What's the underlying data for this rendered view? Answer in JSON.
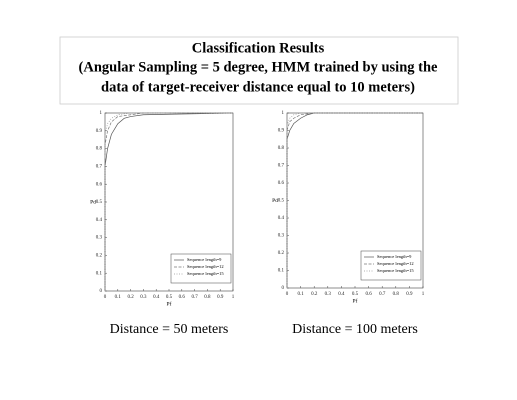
{
  "title": [
    "Classification Results",
    "(Angular Sampling = 5 degree, HMM trained by using the",
    "data of target-receiver distance equal to 10 meters)"
  ],
  "chart_data": [
    {
      "type": "line",
      "title": "Distance = 50 meters",
      "xlabel": "Pf",
      "ylabel": "Pd",
      "xlim": [
        0,
        1
      ],
      "ylim": [
        0,
        1
      ],
      "xticks": [
        0,
        0.1,
        0.2,
        0.3,
        0.4,
        0.5,
        0.6,
        0.7,
        0.8,
        0.9,
        1
      ],
      "yticks": [
        0,
        0.1,
        0.2,
        0.3,
        0.4,
        0.5,
        0.6,
        0.7,
        0.8,
        0.9,
        1
      ],
      "legend": "lower right",
      "series": [
        {
          "name": "Sequence length=9",
          "color": "#555555",
          "dash": "none",
          "x": [
            0,
            0,
            0.02,
            0.05,
            0.1,
            0.15,
            0.2,
            0.3,
            1
          ],
          "values": [
            0,
            0.7,
            0.8,
            0.88,
            0.94,
            0.97,
            0.98,
            0.99,
            1
          ]
        },
        {
          "name": "Sequence length=12",
          "color": "#777777",
          "dash": "3 1.5",
          "x": [
            0,
            0,
            0.02,
            0.05,
            0.1,
            0.2,
            0.3,
            1
          ],
          "values": [
            0,
            0.82,
            0.9,
            0.95,
            0.98,
            0.99,
            1,
            1
          ]
        },
        {
          "name": "Sequence length=15",
          "color": "#999999",
          "dash": "1 1.5",
          "x": [
            0,
            0,
            0.02,
            0.05,
            0.1,
            0.2,
            1
          ],
          "values": [
            0,
            0.88,
            0.94,
            0.97,
            0.99,
            1,
            1
          ]
        }
      ]
    },
    {
      "type": "line",
      "title": "Distance = 100 meters",
      "xlabel": "Pf",
      "ylabel": "Pd",
      "xlim": [
        0,
        1
      ],
      "ylim": [
        0,
        1
      ],
      "xticks": [
        0,
        0.1,
        0.2,
        0.3,
        0.4,
        0.5,
        0.6,
        0.7,
        0.8,
        0.9,
        1
      ],
      "yticks": [
        0,
        0.1,
        0.2,
        0.3,
        0.4,
        0.5,
        0.6,
        0.7,
        0.8,
        0.9,
        1
      ],
      "legend": "lower right",
      "series": [
        {
          "name": "Sequence length=9",
          "color": "#555555",
          "dash": "none",
          "x": [
            0,
            0,
            0.02,
            0.05,
            0.1,
            0.15,
            0.2,
            1
          ],
          "values": [
            0,
            0.85,
            0.9,
            0.94,
            0.97,
            0.99,
            1,
            1
          ]
        },
        {
          "name": "Sequence length=12",
          "color": "#777777",
          "dash": "3 1.5",
          "x": [
            0,
            0,
            0.02,
            0.05,
            0.1,
            0.2,
            1
          ],
          "values": [
            0,
            0.9,
            0.95,
            0.97,
            0.99,
            1,
            1
          ]
        },
        {
          "name": "Sequence length=15",
          "color": "#999999",
          "dash": "1 1.5",
          "x": [
            0,
            0,
            0.02,
            0.05,
            0.1,
            1
          ],
          "values": [
            0,
            0.93,
            0.97,
            0.99,
            1,
            1
          ]
        }
      ]
    }
  ]
}
